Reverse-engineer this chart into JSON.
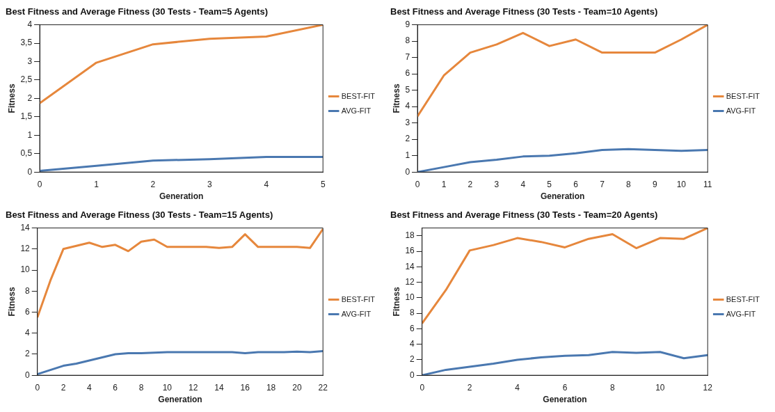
{
  "chart_data": [
    {
      "type": "line",
      "title": "Best Fitness and Average Fitness (30 Tests - Team=5 Agents)",
      "xlabel": "Generation",
      "ylabel": "Fitness",
      "x": [
        0,
        1,
        2,
        3,
        4,
        5
      ],
      "xlim": [
        0,
        5
      ],
      "xticks": [
        0,
        1,
        2,
        3,
        4,
        5
      ],
      "ylim": [
        0,
        4
      ],
      "yticks": [
        0,
        {
          "value": 0.5,
          "label": "0,5"
        },
        1,
        {
          "value": 1.5,
          "label": "1,5"
        },
        2,
        {
          "value": 2.5,
          "label": "2,5"
        },
        3,
        {
          "value": 3.5,
          "label": "3,5"
        },
        4
      ],
      "grid": false,
      "legend": "right",
      "marker": "none",
      "line_style": "solid",
      "series": [
        {
          "name": "BEST-FIT",
          "color": "#e6873c",
          "values": [
            1.87,
            2.97,
            3.47,
            3.62,
            3.68,
            4.0
          ]
        },
        {
          "name": "AVG-FIT",
          "color": "#4a78b0",
          "values": [
            0.03,
            0.17,
            0.31,
            0.35,
            0.41,
            0.41
          ]
        }
      ]
    },
    {
      "type": "line",
      "title": "Best Fitness and Average Fitness (30 Tests - Team=10 Agents)",
      "xlabel": "Generation",
      "ylabel": "Fitness",
      "x": [
        0,
        1,
        2,
        3,
        4,
        5,
        6,
        7,
        8,
        9,
        10,
        11
      ],
      "xlim": [
        0,
        11
      ],
      "xticks": [
        0,
        1,
        2,
        3,
        4,
        5,
        6,
        7,
        8,
        9,
        10,
        11
      ],
      "ylim": [
        0,
        9
      ],
      "yticks": [
        0,
        1,
        2,
        3,
        4,
        5,
        6,
        7,
        8,
        9
      ],
      "grid": false,
      "legend": "right",
      "marker": "none",
      "line_style": "solid",
      "series": [
        {
          "name": "BEST-FIT",
          "color": "#e6873c",
          "values": [
            3.4,
            5.9,
            7.3,
            7.8,
            8.5,
            7.7,
            8.1,
            7.3,
            7.3,
            7.3,
            8.1,
            9.0
          ]
        },
        {
          "name": "AVG-FIT",
          "color": "#4a78b0",
          "values": [
            0,
            0.3,
            0.6,
            0.75,
            0.95,
            1.0,
            1.15,
            1.35,
            1.4,
            1.35,
            1.3,
            1.35
          ]
        }
      ]
    },
    {
      "type": "line",
      "title": "Best Fitness and Average Fitness (30 Tests - Team=15 Agents)",
      "xlabel": "Generation",
      "ylabel": "Fitness",
      "x": [
        0,
        1,
        2,
        3,
        4,
        5,
        6,
        7,
        8,
        9,
        10,
        11,
        12,
        13,
        14,
        15,
        16,
        17,
        18,
        19,
        20,
        21,
        22
      ],
      "xlim": [
        0,
        22
      ],
      "xticks": [
        0,
        2,
        4,
        6,
        8,
        10,
        12,
        14,
        16,
        18,
        20,
        22
      ],
      "ylim": [
        0,
        14
      ],
      "yticks": [
        0,
        2,
        4,
        6,
        8,
        10,
        12,
        14
      ],
      "grid": false,
      "legend": "right",
      "marker": "none",
      "line_style": "solid",
      "series": [
        {
          "name": "BEST-FIT",
          "color": "#e6873c",
          "values": [
            5.5,
            9.0,
            12.0,
            12.3,
            12.6,
            12.2,
            12.4,
            11.8,
            12.7,
            12.9,
            12.2,
            12.2,
            12.2,
            12.2,
            12.1,
            12.2,
            13.4,
            12.2,
            12.2,
            12.2,
            12.2,
            12.1,
            13.9
          ]
        },
        {
          "name": "AVG-FIT",
          "color": "#4a78b0",
          "values": [
            0.1,
            0.5,
            0.9,
            1.1,
            1.4,
            1.7,
            2.0,
            2.1,
            2.1,
            2.15,
            2.2,
            2.2,
            2.2,
            2.2,
            2.2,
            2.2,
            2.1,
            2.2,
            2.2,
            2.2,
            2.25,
            2.2,
            2.3
          ]
        }
      ]
    },
    {
      "type": "line",
      "title": "Best Fitness and Average Fitness (30 Tests - Team=20 Agents)",
      "xlabel": "Generation",
      "ylabel": "Fitness",
      "x": [
        0,
        1,
        2,
        3,
        4,
        5,
        6,
        7,
        8,
        9,
        10,
        11,
        12
      ],
      "xlim": [
        0,
        12
      ],
      "xticks": [
        0,
        2,
        4,
        6,
        8,
        10,
        12
      ],
      "ylim": [
        0,
        19
      ],
      "yticks": [
        0,
        2,
        4,
        6,
        8,
        10,
        12,
        14,
        16,
        18
      ],
      "grid": false,
      "legend": "right",
      "marker": "none",
      "line_style": "solid",
      "series": [
        {
          "name": "BEST-FIT",
          "color": "#e6873c",
          "values": [
            6.7,
            11.0,
            16.1,
            16.8,
            17.7,
            17.2,
            16.5,
            17.6,
            18.2,
            16.4,
            17.7,
            17.6,
            19.0
          ]
        },
        {
          "name": "AVG-FIT",
          "color": "#4a78b0",
          "values": [
            0,
            0.7,
            1.1,
            1.5,
            2.0,
            2.3,
            2.5,
            2.6,
            3.0,
            2.9,
            3.0,
            2.2,
            2.6
          ]
        }
      ]
    }
  ]
}
